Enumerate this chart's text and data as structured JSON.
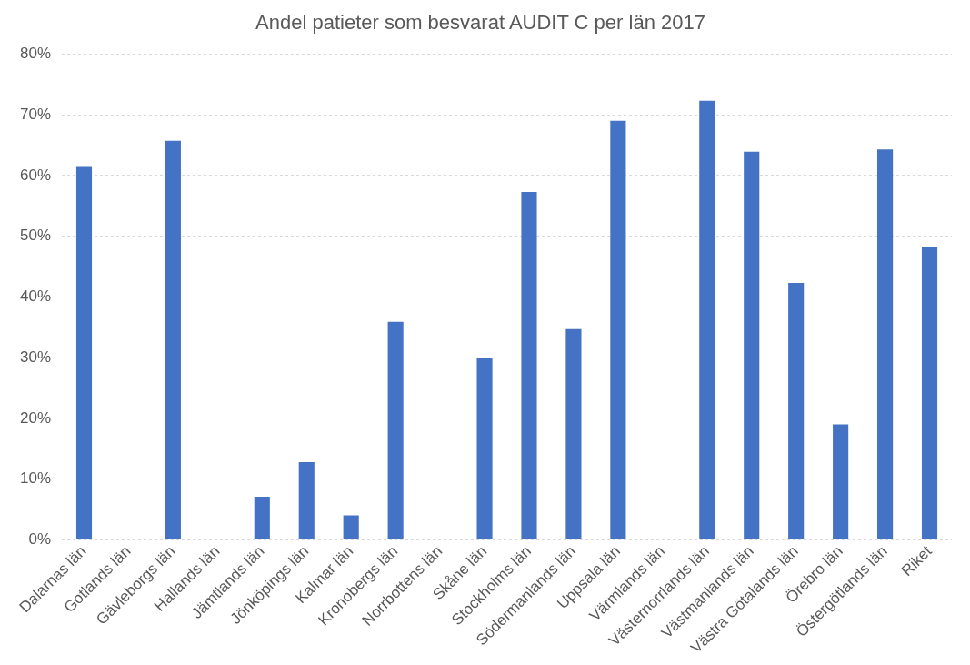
{
  "chart_data": {
    "type": "bar",
    "title": "Andel patieter som besvarat AUDIT C per län 2017",
    "categories": [
      "Dalarnas län",
      "Gotlands län",
      "Gävleborgs län",
      "Hallands län",
      "Jämtlands län",
      "Jönköpings län",
      "Kalmar län",
      "Kronobergs län",
      "Norrbottens län",
      "Skåne län",
      "Stockholms län",
      "Södermanlands län",
      "Uppsala län",
      "Värmlands län",
      "Västernorrlands län",
      "Västmanlands län",
      "Västra Götalands län",
      "Örebro län",
      "Östergötlands län",
      "Riket"
    ],
    "values": [
      61.4,
      null,
      65.7,
      null,
      7.1,
      12.8,
      4.0,
      35.9,
      null,
      30.0,
      57.3,
      34.7,
      69.0,
      null,
      72.3,
      63.9,
      42.3,
      19.0,
      64.3,
      48.3
    ],
    "color": "#4472c4",
    "ylim": [
      0,
      80
    ],
    "yticks": [
      {
        "value": 0,
        "label": "0%"
      },
      {
        "value": 10,
        "label": "10%"
      },
      {
        "value": 20,
        "label": "20%"
      },
      {
        "value": 30,
        "label": "30%"
      },
      {
        "value": 40,
        "label": "40%"
      },
      {
        "value": 50,
        "label": "50%"
      },
      {
        "value": 60,
        "label": "60%"
      },
      {
        "value": 70,
        "label": "70%"
      },
      {
        "value": 80,
        "label": "80%"
      }
    ],
    "grid": "y"
  }
}
